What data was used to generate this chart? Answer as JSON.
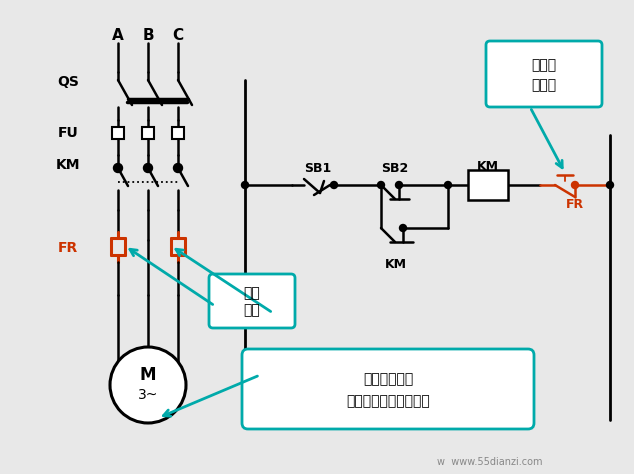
{
  "bg_color": "#e8e8e8",
  "line_color": "#000000",
  "red_color": "#cc3300",
  "teal_color": "#00aaaa",
  "label_A": "A",
  "label_B": "B",
  "label_C": "C",
  "label_QS": "QS",
  "label_FU": "FU",
  "label_KM_left": "KM",
  "label_FR_left": "FR",
  "label_SB1": "SB1",
  "label_SB2": "SB2",
  "label_KM_coil": "KM",
  "label_FR_right": "FR",
  "label_KM_parallel": "KM",
  "label_M": "M",
  "label_3phase": "3~",
  "callout1_line1": "热继电",
  "callout1_line2": "器触头",
  "callout2_line1": "发热",
  "callout2_line2": "元件",
  "callout3_line1": "电流成回路，",
  "callout3_line2": "只要接两相就可以了。",
  "watermark": "w  www.55dianzi.com"
}
